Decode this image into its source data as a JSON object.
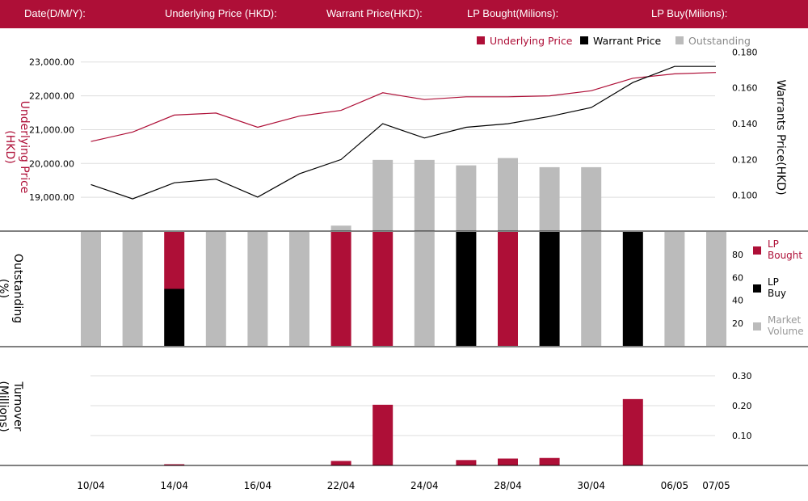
{
  "header": {
    "date_label": "Date(D/M/Y):",
    "underlying_label": "Underlying Price (HKD):",
    "warrant_label": "Warrant  Price(HKD):",
    "lp_bought_label": "LP Bought(Milions):",
    "lp_buy_label": "LP Buy(Milions):"
  },
  "colors": {
    "crimson": "#ae0f37",
    "black": "#000000",
    "grey": "#bbbbbb",
    "grid": "#dddddd"
  },
  "chart_data": [
    {
      "type": "line",
      "legend": [
        "Underlying Price",
        "Warrant  Price",
        "Outstanding"
      ],
      "ylabel_left": "Underlying Price (HKD)",
      "ylabel_right": "Warrants  Price(HKD)",
      "yticks_left": [
        "23,000.00",
        "22,000.00",
        "21,000.00",
        "20,000.00",
        "19,000.00"
      ],
      "yticks_right": [
        "0.180",
        "0.160",
        "0.140",
        "0.120",
        "0.100"
      ],
      "yticks_left_values": [
        23000,
        22000,
        21000,
        20000,
        19000
      ],
      "yticks_right_values": [
        0.18,
        0.16,
        0.14,
        0.12,
        0.1
      ],
      "ylim_left": [
        18000,
        23400
      ],
      "ylim_right": [
        0.08,
        0.182
      ],
      "series": [
        {
          "name": "Underlying Price",
          "axis": "left",
          "values": [
            20650,
            20930,
            21430,
            21490,
            21070,
            21400,
            21570,
            22090,
            21890,
            21970,
            21970,
            22000,
            22150,
            22520,
            22650,
            22690
          ]
        },
        {
          "name": "Warrant  Price",
          "axis": "right",
          "values": [
            0.106,
            0.098,
            0.107,
            0.109,
            0.099,
            0.112,
            0.12,
            0.14,
            0.132,
            0.138,
            0.14,
            0.144,
            0.149,
            0.163,
            0.172,
            0.172
          ]
        }
      ],
      "outstanding": [
        null,
        null,
        null,
        null,
        null,
        null,
        3,
        39,
        39,
        36,
        40,
        35,
        35,
        null,
        null,
        null
      ]
    },
    {
      "type": "bar",
      "ylabel": "Outstanding (%)",
      "yticks": [
        "80",
        "60",
        "40",
        "20"
      ],
      "yticks_values": [
        80,
        60,
        40,
        20
      ],
      "ylim": [
        0,
        100
      ],
      "legend": [
        "LP Bought",
        "LP Buy",
        "Market Volume"
      ],
      "lp_bought": [
        0,
        0,
        50,
        0,
        0,
        0,
        100,
        100,
        0,
        0,
        100,
        0,
        0,
        0,
        0,
        0
      ],
      "lp_buy": [
        0,
        0,
        50,
        0,
        0,
        0,
        0,
        0,
        0,
        100,
        0,
        100,
        0,
        100,
        0,
        0
      ]
    },
    {
      "type": "bar",
      "ylabel": "Turnover (Millions)",
      "yticks": [
        "0.30",
        "0.20",
        "0.10"
      ],
      "yticks_values": [
        0.3,
        0.2,
        0.1
      ],
      "ylim": [
        0,
        0.3
      ],
      "values": [
        0,
        0,
        0.004,
        0,
        0,
        0,
        0.015,
        0.203,
        0,
        0.018,
        0.023,
        0.025,
        0,
        0.222,
        0,
        0
      ]
    }
  ],
  "x_labels": [
    "10/04",
    "",
    "14/04",
    "",
    "16/04",
    "",
    "22/04",
    "",
    "24/04",
    "",
    "28/04",
    "",
    "30/04",
    "",
    "06/05",
    "07/05"
  ]
}
